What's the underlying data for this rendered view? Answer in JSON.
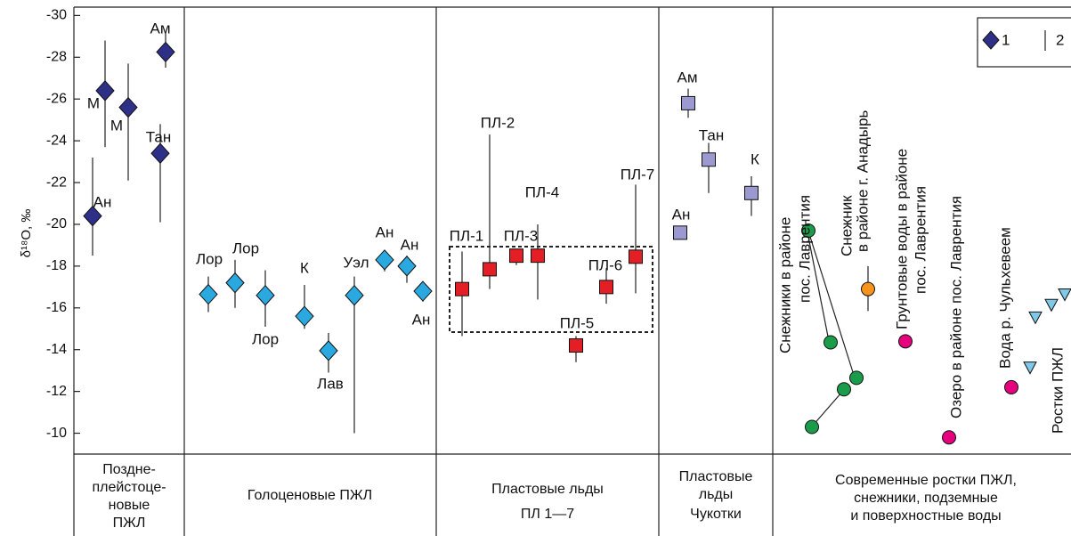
{
  "chart_data": {
    "type": "scatter",
    "ylabel": "δ¹⁸O, ‰",
    "ylim": [
      -9,
      -30.4
    ],
    "yticks": [
      -30,
      -28,
      -26,
      -24,
      -22,
      -20,
      -18,
      -16,
      -14,
      -12,
      -10
    ],
    "groups": [
      {
        "label_lines": [
          "Поздне-",
          "плейстоце-",
          "новые",
          "ПЖЛ"
        ]
      },
      {
        "label_lines": [
          "Голоценовые ПЖЛ"
        ]
      },
      {
        "label_lines": [
          "Пластовые льды",
          "ПЛ 1—7"
        ]
      },
      {
        "label_lines": [
          "Пластовые",
          "льды",
          "Чукотки"
        ]
      },
      {
        "label_lines": [
          "Современные ростки ПЖЛ,",
          "снежники, подземные",
          "и поверхностные воды"
        ]
      }
    ],
    "series": [
      {
        "marker": "diamond",
        "color": "#2e2f86",
        "values": [
          -20.4,
          -26.4,
          -25.6,
          -23.4,
          -28.25
        ],
        "range_min": [
          -23.2,
          -28.8,
          -27.7,
          -24.8,
          -29.2
        ],
        "range_max": [
          -18.5,
          -23.7,
          -22.1,
          -20.1,
          -27.5
        ],
        "point_labels": [
          "Ан",
          "М",
          "М",
          "Тан",
          "Ам"
        ]
      },
      {
        "marker": "diamond",
        "color": "#29a9e0",
        "values": [
          -16.65,
          -17.2,
          -16.6,
          -15.6,
          -13.95,
          -16.6,
          -18.3,
          -18.0,
          -16.8
        ],
        "range_min": [
          -17.5,
          -18.3,
          -17.8,
          -17.1,
          -14.8,
          -17.5,
          -18.7,
          -18.5,
          -17.2
        ],
        "range_max": [
          -15.8,
          -16.0,
          -15.1,
          -15.0,
          -12.9,
          -10.0,
          -17.75,
          -17.2,
          -16.3
        ],
        "point_labels": [
          "Лор",
          "Лор",
          "Лор",
          "К",
          "Лав",
          "Уэл",
          "Ан",
          "Ан",
          "Ан"
        ]
      },
      {
        "marker": "square",
        "color": "#e31e24",
        "values": [
          -16.9,
          -17.85,
          -18.5,
          -18.5,
          -14.2,
          -17.0,
          -18.45
        ],
        "range_min": [
          -18.7,
          -24.3,
          -18.8,
          -20.0,
          -14.65,
          -17.9,
          -21.9
        ],
        "range_max": [
          -14.65,
          -16.9,
          -18.05,
          -16.4,
          -13.4,
          -16.2,
          -16.7
        ],
        "point_labels": [
          "ПЛ-1",
          "ПЛ-2",
          "ПЛ-3",
          "ПЛ-4",
          "ПЛ-5",
          "ПЛ-6",
          "ПЛ-7"
        ]
      },
      {
        "marker": "square",
        "color": "#9b99cf",
        "values": [
          -25.8,
          -23.1,
          -21.5,
          -19.6
        ],
        "range_min": [
          -26.5,
          -23.9,
          -22.3,
          null
        ],
        "range_max": [
          -25.1,
          -21.5,
          -20.4,
          null
        ],
        "point_labels": [
          "Ам",
          "Тан",
          "К",
          "Ан"
        ]
      },
      {
        "marker": "circle",
        "color": "#1a9c4a",
        "values": [
          -19.7,
          -14.35,
          -10.3,
          -12.1,
          -12.65
        ]
      },
      {
        "marker": "circle",
        "color": "#f7941d",
        "values": [
          -16.9
        ],
        "range_min": [
          -18.0
        ],
        "range_max": [
          -15.85
        ]
      },
      {
        "marker": "circle",
        "color": "#e5007e",
        "values": [
          -14.4,
          -9.8,
          -12.2
        ]
      },
      {
        "marker": "triangle",
        "color": "#7fc9e8",
        "values": [
          -13.15,
          -15.55,
          -16.15,
          -16.65
        ]
      }
    ],
    "annotations": [
      {
        "lines": [
          "Снежники в районе",
          "пос. Лаврентия"
        ]
      },
      {
        "lines": [
          "Снежник",
          "в районе г. Анадырь"
        ]
      },
      {
        "lines": [
          "Грунтовые воды в районе",
          "пос. Лаврентия"
        ]
      },
      {
        "lines": [
          "Озеро в районе пос. Лаврентия"
        ]
      },
      {
        "lines": [
          "Вода р. Чульхевеем"
        ]
      },
      {
        "lines": [
          "Ростки ПЖЛ"
        ]
      }
    ],
    "legend": {
      "items": [
        "1",
        "2"
      ]
    }
  }
}
